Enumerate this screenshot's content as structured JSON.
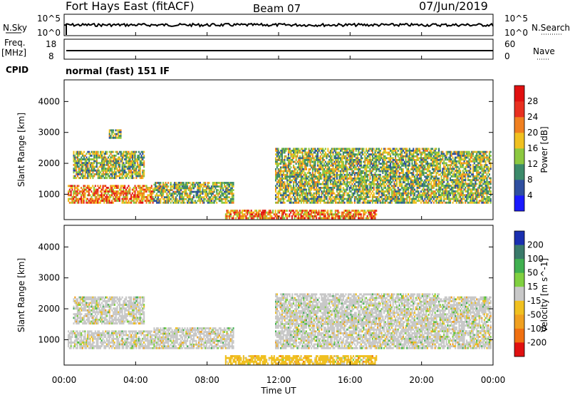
{
  "header": {
    "station": "Fort Hays East (fitACF)",
    "beam": "Beam 07",
    "date": "07/Jun/2019"
  },
  "top_panels": {
    "nsky_label": "N.Sky",
    "nsky_ticks": [
      "10^5",
      "10^0"
    ],
    "nsearch_label": "N.Search",
    "nsearch_ticks": [
      "10^5",
      "10^0"
    ],
    "freq_label_line1": "Freq.",
    "freq_label_line2": "[MHz]",
    "freq_ticks": [
      "18",
      "8"
    ],
    "nave_label": "Nave",
    "nave_ticks": [
      "60",
      "0"
    ],
    "cpid_label": "CPID",
    "cpid_value": "normal (fast) 151 IF"
  },
  "chart_data": [
    {
      "type": "heatmap",
      "name": "power",
      "ylabel": "Slant Range [km]",
      "yticks": [
        "1000",
        "2000",
        "3000",
        "4000"
      ],
      "ylim": [
        180,
        4700
      ],
      "colorbar_label": "Power [dB]",
      "colorbar_ticks": [
        "4",
        "8",
        "12",
        "16",
        "20",
        "24",
        "28"
      ],
      "colorbar_colors": [
        "#1a1aff",
        "#2f4fa0",
        "#3c8a6a",
        "#8cc840",
        "#f0c020",
        "#f08020",
        "#e83020",
        "#e01010"
      ],
      "regions": [
        {
          "t0": 0.2,
          "t1": 5.0,
          "r0": 700,
          "r1": 1300,
          "level": "high"
        },
        {
          "t0": 0.5,
          "t1": 4.5,
          "r0": 1500,
          "r1": 2400,
          "level": "mid"
        },
        {
          "t0": 2.5,
          "t1": 3.2,
          "r0": 2800,
          "r1": 3100,
          "level": "mid"
        },
        {
          "t0": 5.0,
          "t1": 9.5,
          "r0": 700,
          "r1": 1400,
          "level": "mid"
        },
        {
          "t0": 9.0,
          "t1": 17.5,
          "r0": 200,
          "r1": 500,
          "level": "high"
        },
        {
          "t0": 11.8,
          "t1": 21.0,
          "r0": 700,
          "r1": 2500,
          "level": "mid"
        },
        {
          "t0": 21.0,
          "t1": 23.9,
          "r0": 700,
          "r1": 2400,
          "level": "mid"
        }
      ]
    },
    {
      "type": "heatmap",
      "name": "velocity",
      "ylabel": "Slant Range [km]",
      "yticks": [
        "1000",
        "2000",
        "3000",
        "4000"
      ],
      "ylim": [
        180,
        4700
      ],
      "colorbar_label": "Velocity [m s^-1]",
      "colorbar_ticks": [
        "200",
        "100",
        "50",
        "15",
        "-15",
        "-50",
        "-100",
        "-200"
      ],
      "colorbar_colors": [
        "#1a2fb0",
        "#3a7a6a",
        "#40b050",
        "#80d040",
        "#c8c8c8",
        "#f0c020",
        "#f0a020",
        "#f07010",
        "#e01010"
      ],
      "regions": [
        {
          "t0": 0.2,
          "t1": 5.0,
          "r0": 700,
          "r1": 1300,
          "level": "low"
        },
        {
          "t0": 0.5,
          "t1": 4.5,
          "r0": 1500,
          "r1": 2400,
          "level": "low"
        },
        {
          "t0": 5.0,
          "t1": 9.5,
          "r0": 700,
          "r1": 1400,
          "level": "low"
        },
        {
          "t0": 9.0,
          "t1": 17.5,
          "r0": 200,
          "r1": 500,
          "level": "neg"
        },
        {
          "t0": 11.8,
          "t1": 21.0,
          "r0": 700,
          "r1": 2500,
          "level": "low"
        },
        {
          "t0": 21.0,
          "t1": 23.9,
          "r0": 700,
          "r1": 2400,
          "level": "low"
        }
      ]
    }
  ],
  "xaxis": {
    "label": "Time UT",
    "ticks": [
      "00:00",
      "04:00",
      "08:00",
      "12:00",
      "16:00",
      "20:00",
      "00:00"
    ],
    "range_hours": [
      0,
      24
    ]
  }
}
